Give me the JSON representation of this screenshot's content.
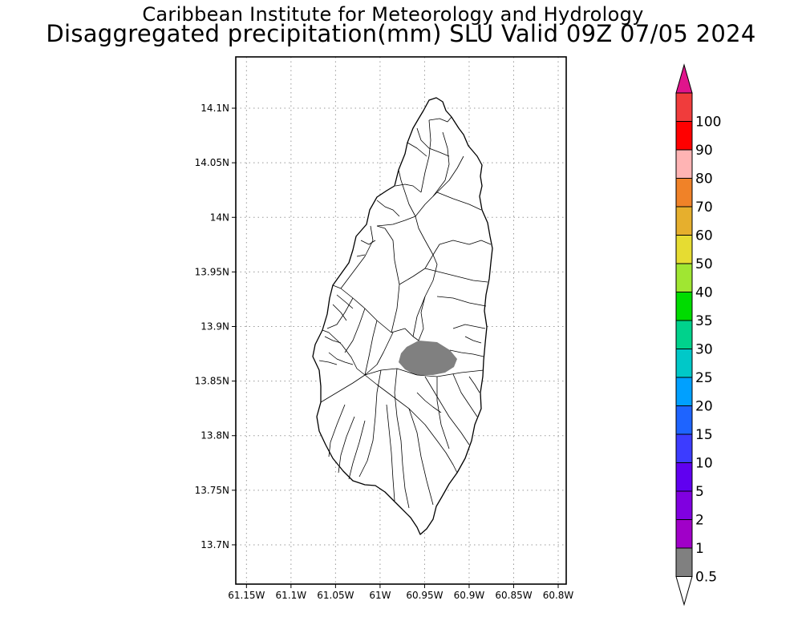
{
  "header": {
    "institute": "Caribbean Institute for Meteorology and Hydrology",
    "product": "Disaggregated precipitation(mm) SLU Valid 09Z 07/05 2024"
  },
  "map": {
    "region": "Saint Lucia",
    "lon_range": [
      -61.162,
      -60.791
    ],
    "lat_range": [
      13.664,
      14.147
    ],
    "grid": "dotted",
    "x_ticks": [
      {
        "lon": -61.15,
        "label": "61.15W"
      },
      {
        "lon": -61.1,
        "label": "61.1W"
      },
      {
        "lon": -61.05,
        "label": "61.05W"
      },
      {
        "lon": -61.0,
        "label": "61W"
      },
      {
        "lon": -60.95,
        "label": "60.95W"
      },
      {
        "lon": -60.9,
        "label": "60.9W"
      },
      {
        "lon": -60.85,
        "label": "60.85W"
      },
      {
        "lon": -60.8,
        "label": "60.8W"
      }
    ],
    "y_ticks": [
      {
        "lat": 14.1,
        "label": "14.1N"
      },
      {
        "lat": 14.05,
        "label": "14.05N"
      },
      {
        "lat": 14.0,
        "label": "14N"
      },
      {
        "lat": 13.95,
        "label": "13.95N"
      },
      {
        "lat": 13.9,
        "label": "13.9N"
      },
      {
        "lat": 13.85,
        "label": "13.85N"
      },
      {
        "lat": 13.8,
        "label": "13.8N"
      },
      {
        "lat": 13.75,
        "label": "13.75N"
      },
      {
        "lat": 13.7,
        "label": "13.7N"
      }
    ],
    "precip_area": {
      "class": "0.5-1",
      "color": "#808080"
    }
  },
  "colorbar": {
    "levels": [
      "0.5",
      "1",
      "2",
      "5",
      "10",
      "15",
      "20",
      "25",
      "30",
      "35",
      "40",
      "50",
      "60",
      "70",
      "80",
      "90",
      "100"
    ],
    "colors": [
      "#808080",
      "#a000c8",
      "#8000e0",
      "#6000f0",
      "#3c3cff",
      "#1e64ff",
      "#00a0ff",
      "#00c8c8",
      "#00d28c",
      "#00dc00",
      "#a0e632",
      "#e6dc32",
      "#e6af2d",
      "#f08228",
      "#ffb4b4",
      "#ff0000",
      "#f03c3c"
    ],
    "under_color": "#ffffff",
    "over_color": "#e0148c"
  }
}
